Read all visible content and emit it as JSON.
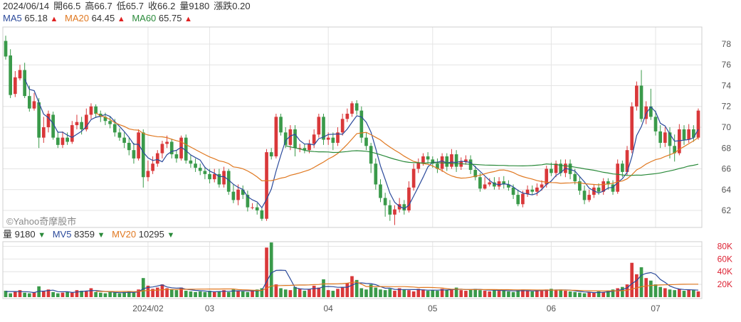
{
  "header": {
    "date": "2024/06/14",
    "open": "開66.5",
    "high": "高66.7",
    "low": "低65.7",
    "close": "收66.2",
    "volume": "量9180",
    "change": "漲跌0.20"
  },
  "ma": [
    {
      "label": "MA5",
      "value": "65.18",
      "color": "#2b4a9b",
      "dir": "▲"
    },
    {
      "label": "MA20",
      "value": "64.45",
      "color": "#e07820",
      "dir": "▲"
    },
    {
      "label": "MA60",
      "value": "65.75",
      "color": "#2a8a3a",
      "dir": "▲"
    }
  ],
  "vol_header": [
    {
      "label": "量",
      "value": "9180",
      "color": "#333",
      "dir": "▼"
    },
    {
      "label": "MV5",
      "value": "8359",
      "color": "#2b4a9b",
      "dir": "▼"
    },
    {
      "label": "MV20",
      "value": "10295",
      "color": "#e07820",
      "dir": "▼"
    }
  ],
  "watermark": "©Yahoo奇摩股市",
  "colors": {
    "up": "#d9383a",
    "down": "#3a9a4a",
    "grid": "#e4e4e4"
  },
  "chart_data": {
    "type": "candlestick",
    "price_axis": {
      "ticks": [
        62,
        64,
        66,
        68,
        70,
        72,
        74,
        76,
        78
      ],
      "ylim": [
        60.5,
        79.5
      ]
    },
    "volume_axis": {
      "ticks": [
        "20K",
        "40K",
        "60K",
        "80K"
      ],
      "tick_values": [
        20,
        40,
        60,
        80
      ],
      "ylim": [
        0,
        85
      ]
    },
    "x_labels": [
      {
        "label": "2024/02",
        "index": 30
      },
      {
        "label": "03",
        "index": 43
      },
      {
        "label": "04",
        "index": 68
      },
      {
        "label": "05",
        "index": 90
      },
      {
        "label": "06",
        "index": 115
      },
      {
        "label": "07",
        "index": 137
      }
    ],
    "candles": [
      [
        78.3,
        76.8,
        78.8,
        76.5
      ],
      [
        76.9,
        73.1,
        77.5,
        72.8
      ],
      [
        73.2,
        74.8,
        75.4,
        72.9
      ],
      [
        74.7,
        75.5,
        76.0,
        74.5
      ],
      [
        75.5,
        73.0,
        76.2,
        72.8
      ],
      [
        73.0,
        71.8,
        74.0,
        71.5
      ],
      [
        71.8,
        72.5,
        73.3,
        71.6
      ],
      [
        72.4,
        69.0,
        72.8,
        68.0
      ],
      [
        69.0,
        70.0,
        71.0,
        68.5
      ],
      [
        70.0,
        71.3,
        71.6,
        69.5
      ],
      [
        71.2,
        69.0,
        71.5,
        68.8
      ],
      [
        69.0,
        68.3,
        69.6,
        68.0
      ],
      [
        68.3,
        69.0,
        69.6,
        68.0
      ],
      [
        69.0,
        68.6,
        69.5,
        68.3
      ],
      [
        68.6,
        70.2,
        70.6,
        68.4
      ],
      [
        70.2,
        70.5,
        71.2,
        69.8
      ],
      [
        70.5,
        69.8,
        71.0,
        69.3
      ],
      [
        69.8,
        71.2,
        71.8,
        69.6
      ],
      [
        71.2,
        72.0,
        72.3,
        70.8
      ],
      [
        72.0,
        71.3,
        72.2,
        70.9
      ],
      [
        71.3,
        71.0,
        71.6,
        70.5
      ],
      [
        71.0,
        70.6,
        71.4,
        70.2
      ],
      [
        70.6,
        70.3,
        71.0,
        69.9
      ],
      [
        70.3,
        69.5,
        70.8,
        69.1
      ],
      [
        69.5,
        69.0,
        69.9,
        68.7
      ],
      [
        69.0,
        68.5,
        69.5,
        68.0
      ],
      [
        68.5,
        67.8,
        69.0,
        67.3
      ],
      [
        67.8,
        67.0,
        68.5,
        66.5
      ],
      [
        67.0,
        69.5,
        69.8,
        66.8
      ],
      [
        69.5,
        65.2,
        69.8,
        64.2
      ],
      [
        65.2,
        65.8,
        66.8,
        64.8
      ],
      [
        65.8,
        66.5,
        67.2,
        65.5
      ],
      [
        66.5,
        67.5,
        67.8,
        66.2
      ],
      [
        67.5,
        68.4,
        68.7,
        67.0
      ],
      [
        68.4,
        68.6,
        69.2,
        68.0
      ],
      [
        68.6,
        67.4,
        68.9,
        67.0
      ],
      [
        67.4,
        67.0,
        67.8,
        66.6
      ],
      [
        67.0,
        69.0,
        69.2,
        66.8
      ],
      [
        69.0,
        66.8,
        69.3,
        66.5
      ],
      [
        66.8,
        66.5,
        67.3,
        66.1
      ],
      [
        66.5,
        66.1,
        67.0,
        65.7
      ],
      [
        66.1,
        65.8,
        66.5,
        65.4
      ],
      [
        65.8,
        65.5,
        66.2,
        65.0
      ],
      [
        65.5,
        65.0,
        66.0,
        64.6
      ],
      [
        65.0,
        65.5,
        66.0,
        64.7
      ],
      [
        65.5,
        64.5,
        66.0,
        64.2
      ],
      [
        64.5,
        65.8,
        66.2,
        64.2
      ],
      [
        65.8,
        63.8,
        66.0,
        63.5
      ],
      [
        63.8,
        63.0,
        64.5,
        62.7
      ],
      [
        63.0,
        64.0,
        64.5,
        62.5
      ],
      [
        64.0,
        63.5,
        64.4,
        63.1
      ],
      [
        63.5,
        62.3,
        63.9,
        61.9
      ],
      [
        62.3,
        62.3,
        62.7,
        62.1
      ],
      [
        62.3,
        62.0,
        62.7,
        61.6
      ],
      [
        62.0,
        61.2,
        62.2,
        61.0
      ],
      [
        61.2,
        67.6,
        67.9,
        61.0
      ],
      [
        67.6,
        67.2,
        68.0,
        66.9
      ],
      [
        67.2,
        71.0,
        71.3,
        67.0
      ],
      [
        71.0,
        69.5,
        71.3,
        69.2
      ],
      [
        69.5,
        68.3,
        70.0,
        68.0
      ],
      [
        68.3,
        69.8,
        70.2,
        67.8
      ],
      [
        69.8,
        68.0,
        70.2,
        67.2
      ],
      [
        68.0,
        68.0,
        68.4,
        67.6
      ],
      [
        68.0,
        67.8,
        68.4,
        67.5
      ],
      [
        67.8,
        68.4,
        68.8,
        67.5
      ],
      [
        68.4,
        69.3,
        69.8,
        68.0
      ],
      [
        69.3,
        71.0,
        71.3,
        69.0
      ],
      [
        71.0,
        68.8,
        71.3,
        68.3
      ],
      [
        68.8,
        69.0,
        69.5,
        68.3
      ],
      [
        69.0,
        68.5,
        69.5,
        67.8
      ],
      [
        68.5,
        69.5,
        70.0,
        68.2
      ],
      [
        69.5,
        70.8,
        71.3,
        69.2
      ],
      [
        70.8,
        71.3,
        71.8,
        70.5
      ],
      [
        71.3,
        72.3,
        72.5,
        71.0
      ],
      [
        72.3,
        71.6,
        72.6,
        71.2
      ],
      [
        71.6,
        69.0,
        72.0,
        68.5
      ],
      [
        69.0,
        68.2,
        69.5,
        67.8
      ],
      [
        68.2,
        66.5,
        68.5,
        65.6
      ],
      [
        66.5,
        64.5,
        67.0,
        64.0
      ],
      [
        64.5,
        63.2,
        65.0,
        62.8
      ],
      [
        63.2,
        62.5,
        63.7,
        61.4
      ],
      [
        62.5,
        61.6,
        63.0,
        61.0
      ],
      [
        61.6,
        62.1,
        62.5,
        60.6
      ],
      [
        62.1,
        62.6,
        63.2,
        61.8
      ],
      [
        62.6,
        62.0,
        63.0,
        61.6
      ],
      [
        62.0,
        64.2,
        64.8,
        61.8
      ],
      [
        64.2,
        66.0,
        66.5,
        63.9
      ],
      [
        66.0,
        66.6,
        67.0,
        65.6
      ],
      [
        66.6,
        67.2,
        67.5,
        66.3
      ],
      [
        67.2,
        66.9,
        67.6,
        66.5
      ],
      [
        66.9,
        66.5,
        67.2,
        66.1
      ],
      [
        66.5,
        66.0,
        67.0,
        65.6
      ],
      [
        66.0,
        67.2,
        67.5,
        65.7
      ],
      [
        67.2,
        66.2,
        67.5,
        65.8
      ],
      [
        66.2,
        67.4,
        67.9,
        66.0
      ],
      [
        67.4,
        66.2,
        67.8,
        65.7
      ],
      [
        66.2,
        66.7,
        67.1,
        65.9
      ],
      [
        66.7,
        66.9,
        67.3,
        66.4
      ],
      [
        66.9,
        65.9,
        67.3,
        65.5
      ],
      [
        65.9,
        65.2,
        66.3,
        64.9
      ],
      [
        65.2,
        64.1,
        65.6,
        63.8
      ],
      [
        64.1,
        64.5,
        65.2,
        64.0
      ],
      [
        64.5,
        64.7,
        65.1,
        64.3
      ],
      [
        64.7,
        64.3,
        65.2,
        64.0
      ],
      [
        64.3,
        64.8,
        65.2,
        64.0
      ],
      [
        64.8,
        64.5,
        65.3,
        64.1
      ],
      [
        64.5,
        64.2,
        64.9,
        63.9
      ],
      [
        64.2,
        63.5,
        64.5,
        63.1
      ],
      [
        63.5,
        62.6,
        64.0,
        62.4
      ],
      [
        62.6,
        63.6,
        63.9,
        62.3
      ],
      [
        63.6,
        64.0,
        64.4,
        63.3
      ],
      [
        64.0,
        63.8,
        64.4,
        63.5
      ],
      [
        63.8,
        64.2,
        64.6,
        63.4
      ],
      [
        64.2,
        64.5,
        64.9,
        63.9
      ],
      [
        64.5,
        66.0,
        66.3,
        64.2
      ],
      [
        66.0,
        65.6,
        66.6,
        65.3
      ],
      [
        65.6,
        66.5,
        66.8,
        65.2
      ],
      [
        66.5,
        65.6,
        66.9,
        65.3
      ],
      [
        65.6,
        66.5,
        66.9,
        65.2
      ],
      [
        66.5,
        65.5,
        66.9,
        65.0
      ],
      [
        65.5,
        64.8,
        66.0,
        64.5
      ],
      [
        64.8,
        63.9,
        65.3,
        63.5
      ],
      [
        63.9,
        63.0,
        64.4,
        62.6
      ],
      [
        63.0,
        63.5,
        64.0,
        62.8
      ],
      [
        63.5,
        64.2,
        64.5,
        63.2
      ],
      [
        64.2,
        63.8,
        64.6,
        63.5
      ],
      [
        63.8,
        64.8,
        65.1,
        63.5
      ],
      [
        64.8,
        64.5,
        65.1,
        64.0
      ],
      [
        64.5,
        63.8,
        64.9,
        63.5
      ],
      [
        63.8,
        66.5,
        66.9,
        63.6
      ],
      [
        66.5,
        65.7,
        66.8,
        65.2
      ],
      [
        65.7,
        67.8,
        68.2,
        65.4
      ],
      [
        67.8,
        72.0,
        72.4,
        67.5
      ],
      [
        72.0,
        74.0,
        74.4,
        71.6
      ],
      [
        74.0,
        70.8,
        75.5,
        70.5
      ],
      [
        70.8,
        72.0,
        72.5,
        70.3
      ],
      [
        72.0,
        71.0,
        73.7,
        70.7
      ],
      [
        71.0,
        69.6,
        71.6,
        69.2
      ],
      [
        69.6,
        68.5,
        70.2,
        68.0
      ],
      [
        68.5,
        69.5,
        70.0,
        68.1
      ],
      [
        69.5,
        68.2,
        70.0,
        67.0
      ],
      [
        68.2,
        67.5,
        69.3,
        66.7
      ],
      [
        67.5,
        69.8,
        70.3,
        67.3
      ],
      [
        69.8,
        68.8,
        70.2,
        68.3
      ],
      [
        68.8,
        69.8,
        70.3,
        68.5
      ],
      [
        69.8,
        69.0,
        70.2,
        68.6
      ],
      [
        69.0,
        71.6,
        71.8,
        68.8
      ]
    ],
    "volumes": [
      10,
      6,
      9,
      11,
      7,
      6,
      8,
      17,
      9,
      12,
      8,
      6,
      7,
      9,
      7,
      11,
      10,
      9,
      14,
      8,
      7,
      6,
      8,
      7,
      6,
      8,
      9,
      7,
      12,
      30,
      18,
      13,
      15,
      20,
      14,
      12,
      11,
      15,
      10,
      9,
      8,
      9,
      8,
      10,
      8,
      9,
      11,
      8,
      12,
      10,
      9,
      8,
      10,
      12,
      14,
      78,
      86,
      20,
      14,
      12,
      11,
      16,
      13,
      10,
      12,
      18,
      15,
      28,
      11,
      10,
      13,
      16,
      22,
      33,
      27,
      14,
      12,
      20,
      15,
      12,
      11,
      13,
      10,
      14,
      12,
      11,
      9,
      13,
      12,
      10,
      11,
      10,
      13,
      11,
      12,
      15,
      11,
      10,
      12,
      13,
      11,
      10,
      9,
      12,
      10,
      11,
      9,
      8,
      11,
      12,
      10,
      9,
      11,
      10,
      12,
      13,
      11,
      12,
      10,
      9,
      8,
      7,
      6,
      8,
      7,
      9,
      8,
      10,
      12,
      14,
      16,
      20,
      54,
      36,
      47,
      30,
      26,
      20,
      16,
      14,
      12,
      11,
      13,
      10,
      12,
      11,
      9
    ],
    "mv5": [
      8.8,
      8.8,
      8.8,
      8.6,
      8.6,
      8.2,
      7.2,
      9.4,
      9.4,
      10.4,
      11.0,
      8.6,
      8.4,
      8.6,
      7.4,
      8.0,
      8.8,
      9.6,
      10.2,
      10.4,
      9.6,
      8.8,
      8.6,
      7.4,
      7.0,
      7.0,
      7.6,
      7.4,
      8.4,
      13.2,
      15.2,
      16.0,
      17.6,
      19.2,
      16.0,
      14.8,
      14.2,
      14.4,
      12.4,
      11.4,
      10.6,
      10.2,
      9.6,
      8.8,
      8.6,
      8.8,
      9.2,
      9.2,
      9.6,
      10.0,
      10.0,
      9.8,
      10.0,
      9.8,
      10.6,
      24.4,
      38.0,
      42.0,
      42.4,
      42.0,
      28.6,
      14.6,
      13.2,
      12.4,
      12.4,
      13.8,
      13.6,
      16.6,
      16.8,
      16.4,
      15.4,
      15.6,
      15.6,
      18.8,
      22.2,
      22.4,
      21.6,
      21.2,
      19.6,
      16.6,
      14.0,
      14.2,
      12.2,
      12.0,
      12.0,
      12.0,
      11.8,
      11.8,
      11.4,
      11.0,
      11.0,
      11.0,
      11.4,
      11.2,
      11.8,
      12.2,
      12.4,
      11.8,
      11.8,
      12.2,
      12.2,
      11.4,
      11.0,
      11.0,
      10.6,
      10.4,
      10.2,
      9.8,
      9.8,
      10.2,
      10.2,
      9.8,
      9.8,
      10.6,
      10.4,
      11.0,
      11.4,
      11.2,
      11.4,
      11.0,
      10.0,
      9.0,
      8.2,
      7.8,
      7.0,
      7.4,
      7.6,
      8.4,
      9.2,
      10.6,
      12.0,
      14.4,
      21.2,
      26.0,
      34.6,
      37.4,
      38.6,
      35.8,
      27.8,
      23.2,
      17.6,
      14.6,
      12.8,
      12.0,
      11.6,
      11.4,
      11.0
    ],
    "mv20": [
      null,
      null,
      null,
      null,
      null,
      null,
      null,
      null,
      null,
      null,
      null,
      null,
      null,
      null,
      null,
      null,
      null,
      null,
      null,
      9.1,
      9.0,
      9.0,
      8.9,
      8.8,
      8.8,
      8.9,
      8.9,
      8.7,
      8.8,
      9.9,
      10.4,
      10.7,
      11.1,
      11.6,
      12.0,
      12.1,
      12.1,
      12.4,
      12.3,
      12.4,
      12.5,
      12.6,
      12.6,
      12.7,
      12.8,
      12.8,
      12.9,
      12.9,
      12.9,
      11.9,
      11.5,
      11.3,
      11.0,
      10.6,
      10.6,
      13.9,
      17.6,
      17.9,
      18.1,
      18.3,
      18.4,
      18.8,
      19.0,
      19.0,
      19.2,
      19.7,
      19.9,
      20.9,
      20.8,
      20.8,
      21.0,
      21.4,
      22.0,
      23.1,
      23.7,
      20.5,
      16.7,
      16.7,
      16.7,
      16.7,
      16.7,
      16.6,
      16.4,
      16.6,
      16.6,
      16.2,
      15.9,
      15.1,
      15.2,
      15.2,
      15.1,
      14.8,
      14.4,
      13.3,
      12.5,
      12.5,
      12.5,
      12.0,
      11.9,
      12.0,
      12.0,
      11.9,
      11.9,
      11.8,
      11.7,
      11.7,
      11.7,
      11.5,
      11.4,
      11.5,
      11.5,
      11.4,
      11.2,
      11.2,
      11.2,
      11.1,
      11.1,
      11.2,
      11.1,
      10.9,
      10.7,
      10.5,
      10.3,
      10.1,
      9.9,
      9.9,
      9.8,
      9.9,
      9.9,
      10.0,
      10.2,
      10.7,
      12.9,
      14.5,
      16.3,
      17.4,
      18.2,
      18.8,
      19.1,
      19.4,
      19.6,
      19.8,
      20.1,
      20.2,
      20.4,
      20.4,
      20.3
    ]
  }
}
